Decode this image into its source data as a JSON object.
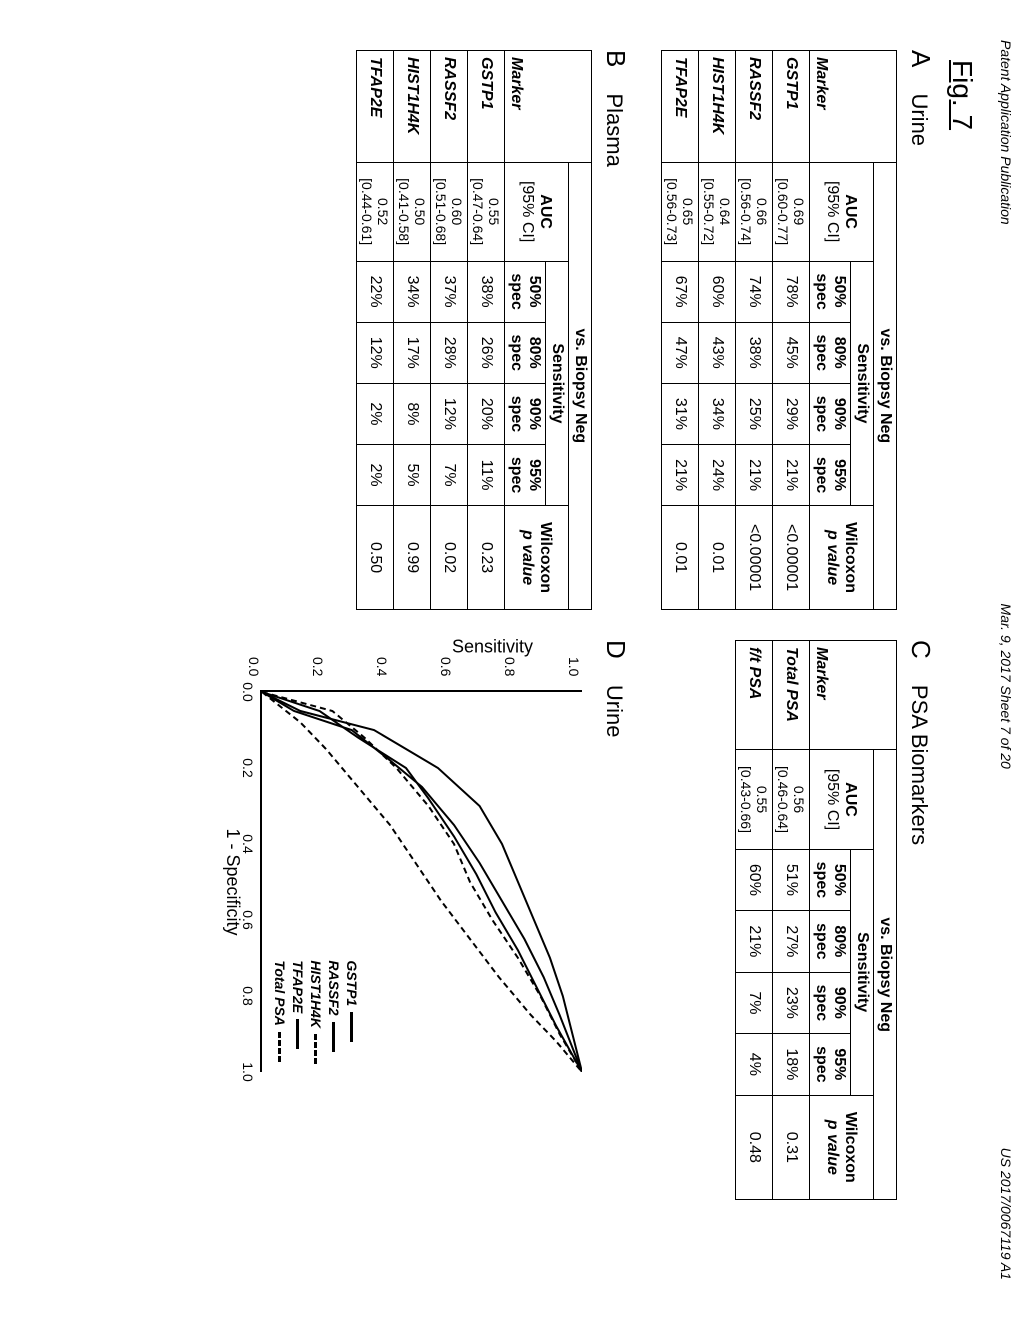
{
  "header": {
    "left": "Patent Application Publication",
    "center": "Mar. 9, 2017  Sheet 7 of 20",
    "right": "US 2017/0067119 A1"
  },
  "figure_label": "Fig. 7",
  "panels": {
    "A": {
      "letter": "A",
      "title": "Urine",
      "group_header": "vs. Biopsy Neg",
      "columns": [
        "Marker",
        "AUC\n[95% CI]",
        "50% spec",
        "80% spec",
        "90% spec",
        "95% spec",
        "Wilcoxon p value"
      ],
      "sens_header": "Sensitivity",
      "auc_header": "AUC",
      "rows": [
        {
          "marker": "GSTP1",
          "auc": "0.69",
          "ci": "[0.60-0.77]",
          "s50": "78%",
          "s80": "45%",
          "s90": "29%",
          "s95": "21%",
          "p": "<0.00001"
        },
        {
          "marker": "RASSF2",
          "auc": "0.66",
          "ci": "[0.56-0.74]",
          "s50": "74%",
          "s80": "38%",
          "s90": "25%",
          "s95": "21%",
          "p": "<0.00001"
        },
        {
          "marker": "HIST1H4K",
          "auc": "0.64",
          "ci": "[0.55-0.72]",
          "s50": "60%",
          "s80": "43%",
          "s90": "34%",
          "s95": "24%",
          "p": "0.01"
        },
        {
          "marker": "TFAP2E",
          "auc": "0.65",
          "ci": "[0.56-0.73]",
          "s50": "67%",
          "s80": "47%",
          "s90": "31%",
          "s95": "21%",
          "p": "0.01"
        }
      ]
    },
    "B": {
      "letter": "B",
      "title": "Plasma",
      "group_header": "vs. Biopsy Neg",
      "sens_header": "Sensitivity",
      "auc_header": "AUC",
      "rows": [
        {
          "marker": "GSTP1",
          "auc": "0.55",
          "ci": "[0.47-0.64]",
          "s50": "38%",
          "s80": "26%",
          "s90": "20%",
          "s95": "11%",
          "p": "0.23"
        },
        {
          "marker": "RASSF2",
          "auc": "0.60",
          "ci": "[0.51-0.68]",
          "s50": "37%",
          "s80": "28%",
          "s90": "12%",
          "s95": "7%",
          "p": "0.02"
        },
        {
          "marker": "HIST1H4K",
          "auc": "0.50",
          "ci": "[0.41-0.58]",
          "s50": "34%",
          "s80": "17%",
          "s90": "8%",
          "s95": "5%",
          "p": "0.99"
        },
        {
          "marker": "TFAP2E",
          "auc": "0.52",
          "ci": "[0.44-0.61]",
          "s50": "22%",
          "s80": "12%",
          "s90": "2%",
          "s95": "2%",
          "p": "0.50"
        }
      ]
    },
    "C": {
      "letter": "C",
      "title": "PSA Biomarkers",
      "group_header": "vs. Biopsy Neg",
      "sens_header": "Sensitivity",
      "auc_header": "AUC",
      "rows": [
        {
          "marker": "Total PSA",
          "auc": "0.56",
          "ci": "[0.46-0.64]",
          "s50": "51%",
          "s80": "27%",
          "s90": "23%",
          "s95": "18%",
          "p": "0.31"
        },
        {
          "marker": "f/t PSA",
          "auc": "0.55",
          "ci": "[0.43-0.66]",
          "s50": "60%",
          "s80": "21%",
          "s90": "7%",
          "s95": "4%",
          "p": "0.48"
        }
      ]
    },
    "D": {
      "letter": "D",
      "title": "Urine",
      "type": "roc",
      "xlabel": "1 - Specificity",
      "ylabel": "Sensitivity",
      "xlim": [
        0,
        1.0
      ],
      "ylim": [
        0,
        1.0
      ],
      "ticks": [
        0.0,
        0.2,
        0.4,
        0.6,
        0.8,
        1.0
      ],
      "tick_labels": [
        "0.0",
        "0.2",
        "0.4",
        "0.6",
        "0.8",
        "1.0"
      ],
      "background_color": "#ffffff",
      "line_width": 2,
      "series": [
        {
          "name": "GSTP1",
          "style": "solid",
          "color": "#000000",
          "points": [
            [
              0,
              0
            ],
            [
              0.05,
              0.12
            ],
            [
              0.1,
              0.35
            ],
            [
              0.15,
              0.45
            ],
            [
              0.2,
              0.55
            ],
            [
              0.3,
              0.68
            ],
            [
              0.4,
              0.75
            ],
            [
              0.5,
              0.8
            ],
            [
              0.6,
              0.85
            ],
            [
              0.7,
              0.9
            ],
            [
              0.8,
              0.94
            ],
            [
              0.9,
              0.97
            ],
            [
              1.0,
              1.0
            ]
          ]
        },
        {
          "name": "RASSF2",
          "style": "solid",
          "color": "#000000",
          "points": [
            [
              0,
              0
            ],
            [
              0.05,
              0.1
            ],
            [
              0.1,
              0.28
            ],
            [
              0.18,
              0.4
            ],
            [
              0.25,
              0.5
            ],
            [
              0.35,
              0.6
            ],
            [
              0.45,
              0.68
            ],
            [
              0.55,
              0.75
            ],
            [
              0.65,
              0.82
            ],
            [
              0.75,
              0.88
            ],
            [
              0.85,
              0.93
            ],
            [
              1.0,
              1.0
            ]
          ]
        },
        {
          "name": "HIST1H4K",
          "style": "dashed",
          "color": "#000000",
          "points": [
            [
              0,
              0
            ],
            [
              0.05,
              0.22
            ],
            [
              0.12,
              0.32
            ],
            [
              0.2,
              0.42
            ],
            [
              0.3,
              0.52
            ],
            [
              0.4,
              0.6
            ],
            [
              0.5,
              0.65
            ],
            [
              0.6,
              0.72
            ],
            [
              0.7,
              0.8
            ],
            [
              0.8,
              0.87
            ],
            [
              0.9,
              0.93
            ],
            [
              1.0,
              1.0
            ]
          ]
        },
        {
          "name": "TFAP2E",
          "style": "solid",
          "color": "#000000",
          "points": [
            [
              0,
              0
            ],
            [
              0.05,
              0.18
            ],
            [
              0.12,
              0.3
            ],
            [
              0.2,
              0.45
            ],
            [
              0.28,
              0.52
            ],
            [
              0.38,
              0.6
            ],
            [
              0.48,
              0.67
            ],
            [
              0.58,
              0.73
            ],
            [
              0.68,
              0.8
            ],
            [
              0.78,
              0.86
            ],
            [
              0.88,
              0.92
            ],
            [
              1.0,
              1.0
            ]
          ]
        },
        {
          "name": "Total PSA",
          "style": "dashed",
          "color": "#000000",
          "points": [
            [
              0,
              0
            ],
            [
              0.08,
              0.12
            ],
            [
              0.15,
              0.2
            ],
            [
              0.25,
              0.3
            ],
            [
              0.35,
              0.4
            ],
            [
              0.45,
              0.48
            ],
            [
              0.55,
              0.56
            ],
            [
              0.65,
              0.65
            ],
            [
              0.75,
              0.74
            ],
            [
              0.85,
              0.84
            ],
            [
              0.92,
              0.92
            ],
            [
              1.0,
              1.0
            ]
          ]
        }
      ],
      "legend_items": [
        {
          "label": "GSTP1",
          "style": "solid"
        },
        {
          "label": "RASSF2",
          "style": "solid"
        },
        {
          "label": "HIST1H4K",
          "style": "dashed"
        },
        {
          "label": "TFAP2E",
          "style": "solid"
        },
        {
          "label": "Total PSA",
          "style": "dashed"
        }
      ]
    }
  },
  "column_labels": {
    "marker": "Marker",
    "auc_ci": "[95% CI]",
    "s50": "50% spec",
    "s80": "80% spec",
    "s90": "90% spec",
    "s95": "95% spec",
    "wilcoxon": "Wilcoxon",
    "pvalue": "p value"
  }
}
